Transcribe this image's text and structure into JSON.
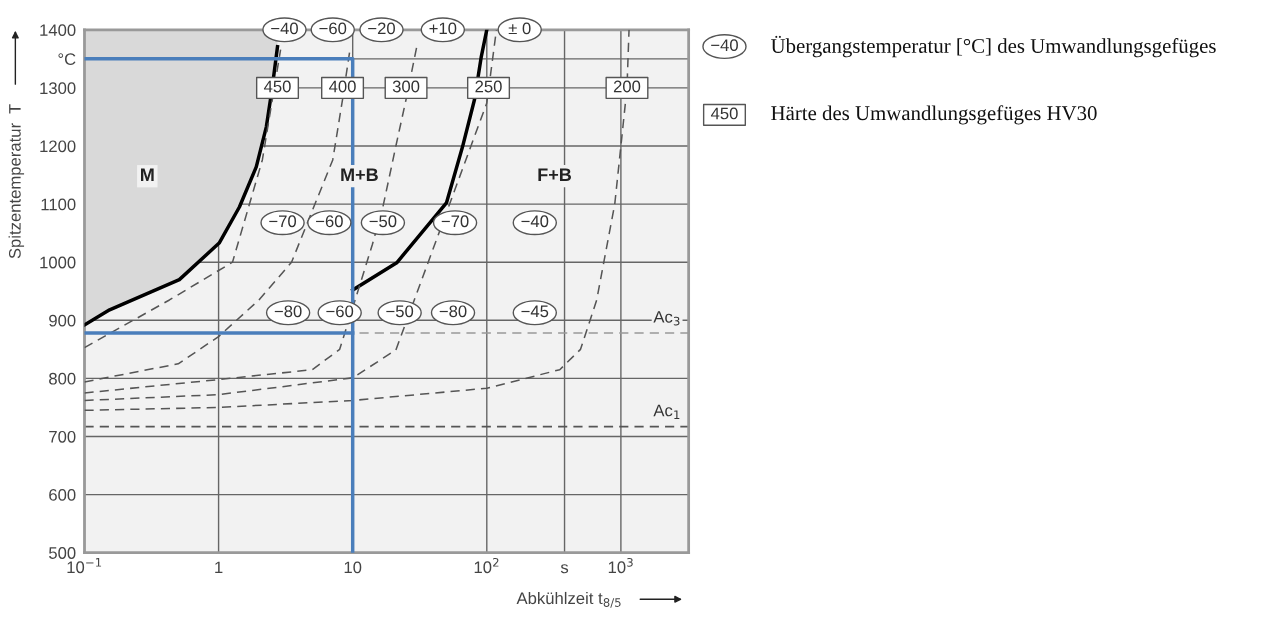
{
  "chart_data": {
    "type": "line",
    "xlabel": "Abkühlzeit t$_{8/5}$",
    "ylabel": "Spitzentemperatur  T",
    "log": "x",
    "xlim": [
      0.1,
      3200
    ],
    "ylim": [
      500,
      1400
    ],
    "xticks": [
      {
        "value": 0.1,
        "label": "10$^{−1}$"
      },
      1,
      10,
      {
        "value": 100,
        "label": "10$^{2}$"
      },
      {
        "value": 380,
        "label": "s"
      },
      {
        "value": 1000,
        "label": "10$^{3}$"
      }
    ],
    "yticks": [
      500,
      600,
      700,
      800,
      900,
      1000,
      1100,
      1200,
      1300,
      {
        "value": 1350,
        "label": "°C"
      },
      1400
    ],
    "grid": true,
    "legend": "right",
    "series": [
      {
        "color": "#000000",
        "line_style": "solid",
        "x": [
          0.1,
          0.154,
          0.51,
          1.01,
          1.43,
          1.91,
          2.27,
          2.5,
          2.75
        ],
        "values": [
          892,
          918,
          970,
          1033,
          1095,
          1164,
          1233,
          1297,
          1371
        ]
      },
      {
        "color": "#000000",
        "line_style": "solid",
        "x": [
          10,
          21.3,
          50,
          66,
          81,
          91,
          100
        ],
        "values": [
          952,
          999,
          1102,
          1199,
          1280,
          1354,
          1400
        ]
      },
      {
        "color": "#555555",
        "line_style": "dashed",
        "x": [
          0.1,
          0.43,
          1.27,
          2.12,
          2.9
        ],
        "values": [
          853,
          935,
          1000,
          1176,
          1366
        ]
      },
      {
        "color": "#555555",
        "line_style": "dashed",
        "x": [
          0.1,
          0.5,
          1,
          2,
          3.5,
          7.1,
          8.4,
          9.6
        ],
        "values": [
          794,
          825,
          872,
          935,
          1000,
          1176,
          1280,
          1370
        ]
      },
      {
        "color": "#555555",
        "line_style": "dashed",
        "x": [
          0.1,
          1,
          5,
          8,
          11,
          14,
          16.8,
          21,
          25,
          30
        ],
        "values": [
          775,
          798,
          815,
          850,
          952,
          1030,
          1095,
          1200,
          1280,
          1370
        ]
      },
      {
        "color": "#555555",
        "line_style": "dashed",
        "x": [
          0.1,
          1,
          10,
          21,
          100,
          118
        ],
        "values": [
          762,
          772,
          801,
          849,
          1274,
          1400
        ]
      },
      {
        "color": "#555555",
        "line_style": "dashed",
        "x": [
          0.1,
          1,
          10,
          100,
          350,
          500,
          660,
          900,
          1000,
          1110,
          1150
        ],
        "values": [
          745,
          750,
          762,
          783,
          815,
          850,
          935,
          1100,
          1200,
          1300,
          1400
        ]
      },
      {
        "color": "#4a7ebb",
        "line_style": "solid",
        "x": [
          0.1,
          10,
          10
        ],
        "values": [
          1350,
          1350,
          500
        ]
      },
      {
        "color": "#4a7ebb",
        "line_style": "solid",
        "x": [
          0.1,
          10
        ],
        "values": [
          878,
          878
        ]
      },
      {
        "type": "scatter",
        "marker": "circle",
        "color": "#555555",
        "name": "Übergangstemperatur [°C] des Umwandlungsgefüges",
        "x": [
          3.1,
          7.1,
          16.4,
          47,
          176,
          3.0,
          6.7,
          16.8,
          58,
          228,
          3.3,
          8.0,
          22.4,
          56,
          228
        ],
        "values": [
          1400,
          1400,
          1400,
          1400,
          1400,
          1068,
          1068,
          1068,
          1068,
          1068,
          913,
          913,
          913,
          913,
          913
        ]
      },
      {
        "type": "scatter",
        "marker": "square",
        "color": "#555555",
        "name": "Härte des Umwandlungsgefüges HV30",
        "x": [
          2.75,
          8.4,
          25,
          103,
          1110
        ],
        "values": [
          1300,
          1300,
          1300,
          1300,
          1300
        ]
      }
    ],
    "ref_lines": [
      {
        "axis": "y",
        "value": 878,
        "label": "Ac$_{3}$",
        "color": "#999999",
        "line_style": "dashed"
      },
      {
        "axis": "y",
        "value": 717,
        "label": "Ac$_{1}$",
        "color": "#555555",
        "line_style": "dashed"
      }
    ],
    "annotations": [
      {
        "text": "−40",
        "x": 3.1,
        "y": 1400
      },
      {
        "text": "−60",
        "x": 7.1,
        "y": 1400
      },
      {
        "text": "−20",
        "x": 16.4,
        "y": 1400
      },
      {
        "text": "+10",
        "x": 47,
        "y": 1400
      },
      {
        "text": "± 0",
        "x": 176,
        "y": 1400
      },
      {
        "text": "−70",
        "x": 3.0,
        "y": 1068
      },
      {
        "text": "−60",
        "x": 6.7,
        "y": 1068
      },
      {
        "text": "−50",
        "x": 16.8,
        "y": 1068
      },
      {
        "text": "−70",
        "x": 58,
        "y": 1068
      },
      {
        "text": "−40",
        "x": 228,
        "y": 1068
      },
      {
        "text": "−80",
        "x": 3.3,
        "y": 913
      },
      {
        "text": "−60",
        "x": 8.0,
        "y": 913
      },
      {
        "text": "−50",
        "x": 22.4,
        "y": 913
      },
      {
        "text": "−80",
        "x": 56,
        "y": 913
      },
      {
        "text": "−45",
        "x": 228,
        "y": 913
      },
      {
        "text": "450",
        "x": 2.75,
        "y": 1300
      },
      {
        "text": "400",
        "x": 8.4,
        "y": 1300
      },
      {
        "text": "300",
        "x": 25,
        "y": 1300
      },
      {
        "text": "250",
        "x": 103,
        "y": 1300
      },
      {
        "text": "200",
        "x": 1110,
        "y": 1300
      },
      "−40",
      "450",
      "M",
      "M+B",
      "F+B"
    ]
  }
}
